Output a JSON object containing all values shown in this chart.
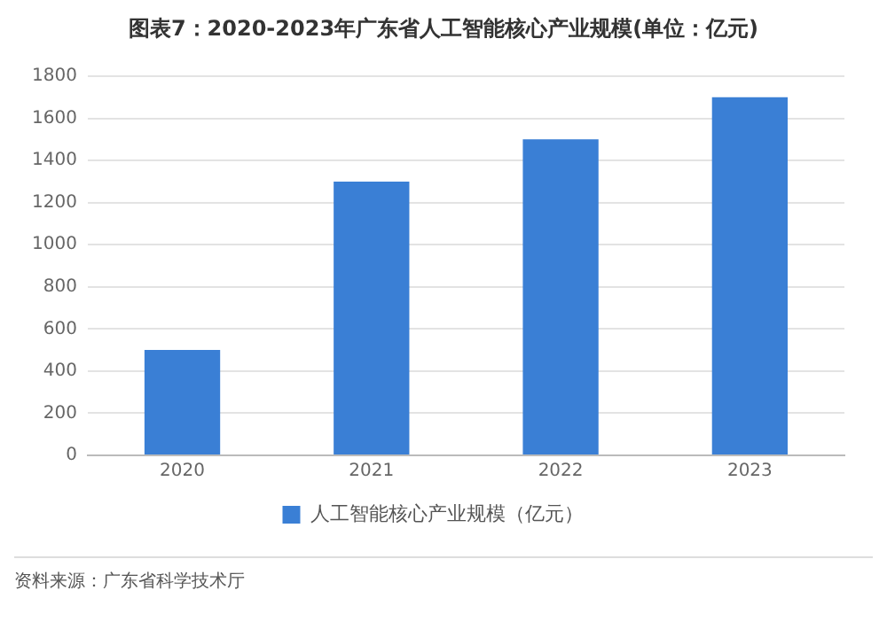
{
  "chart_data": {
    "type": "bar",
    "title": "图表7：2020-2023年广东省人工智能核心产业规模(单位：亿元)",
    "categories": [
      "2020",
      "2021",
      "2022",
      "2023"
    ],
    "series": [
      {
        "name": "人工智能核心产业规模（亿元）",
        "color": "#3a7fd5",
        "values": [
          500,
          1300,
          1500,
          1700
        ]
      }
    ],
    "ylim": [
      0,
      1800
    ],
    "yticks": [
      0,
      200,
      400,
      600,
      800,
      1000,
      1200,
      1400,
      1600,
      1800
    ],
    "grid": "y",
    "legend": "bottom",
    "annotations": [
      "资料来源：广东省科学技术厅"
    ]
  }
}
